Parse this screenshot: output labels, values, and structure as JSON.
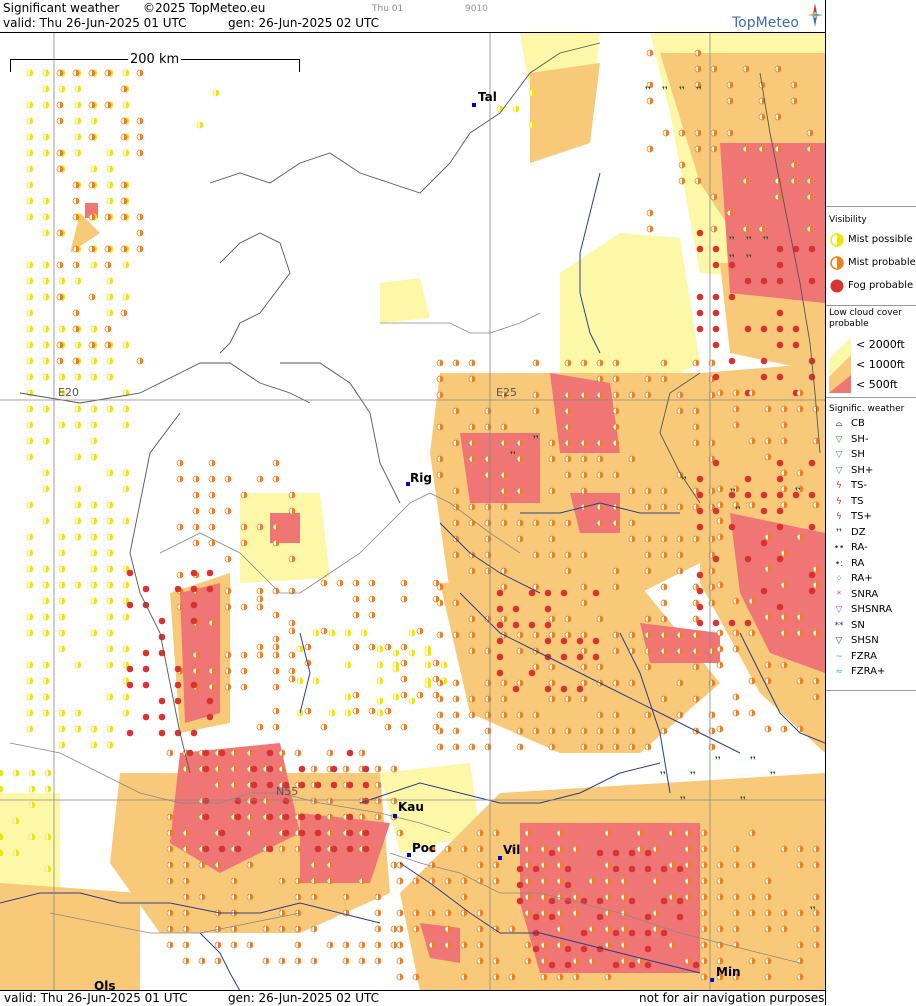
{
  "header": {
    "title": "Significant weather",
    "copyright": "©2025 TopMeteo.eu",
    "frame_label": "Thu 01",
    "frame_code": "9010",
    "valid": "valid:  Thu   26-Jun-2025  01 UTC",
    "generated": "gen:  26-Jun-2025 02 UTC",
    "brand": "TopMeteo"
  },
  "footer": {
    "valid": "valid:  Thu   26-Jun-2025  01 UTC",
    "generated": "gen:  26-Jun-2025 02 UTC",
    "disclaimer": "not for air navigation purposes"
  },
  "map": {
    "scale_label": "200 km",
    "grid_labels": [
      "E20",
      "E25",
      "N55"
    ],
    "cities": [
      {
        "name": "Tal"
      },
      {
        "name": "Rig"
      },
      {
        "name": "Kau"
      },
      {
        "name": "Poc"
      },
      {
        "name": "Vil"
      },
      {
        "name": "Ols"
      },
      {
        "name": "Min"
      }
    ]
  },
  "legend": {
    "visibility_title": "Visibility",
    "visibility_items": [
      "Mist possible",
      "Mist probable",
      "Fog probable"
    ],
    "cloud_title": "Low cloud cover probable",
    "cloud_items": [
      "< 2000ft",
      "< 1000ft",
      "<   500ft"
    ],
    "weather_title": "Signific. weather",
    "weather_items": [
      "CB",
      "SH-",
      "SH",
      "SH+",
      "TS-",
      "TS",
      "TS+",
      "DZ",
      "RA-",
      "RA",
      "RA+",
      "SNRA",
      "SHSNRA",
      "SN",
      "SHSN",
      "FZRA",
      "FZRA+"
    ],
    "colors": {
      "mist_possible": "#f2e400",
      "mist_probable": "#f07f1e",
      "fog_probable": "#d83232",
      "cloud_2000": "#fdf8a8",
      "cloud_1000": "#f9c97a",
      "cloud_500": "#f07575"
    }
  }
}
